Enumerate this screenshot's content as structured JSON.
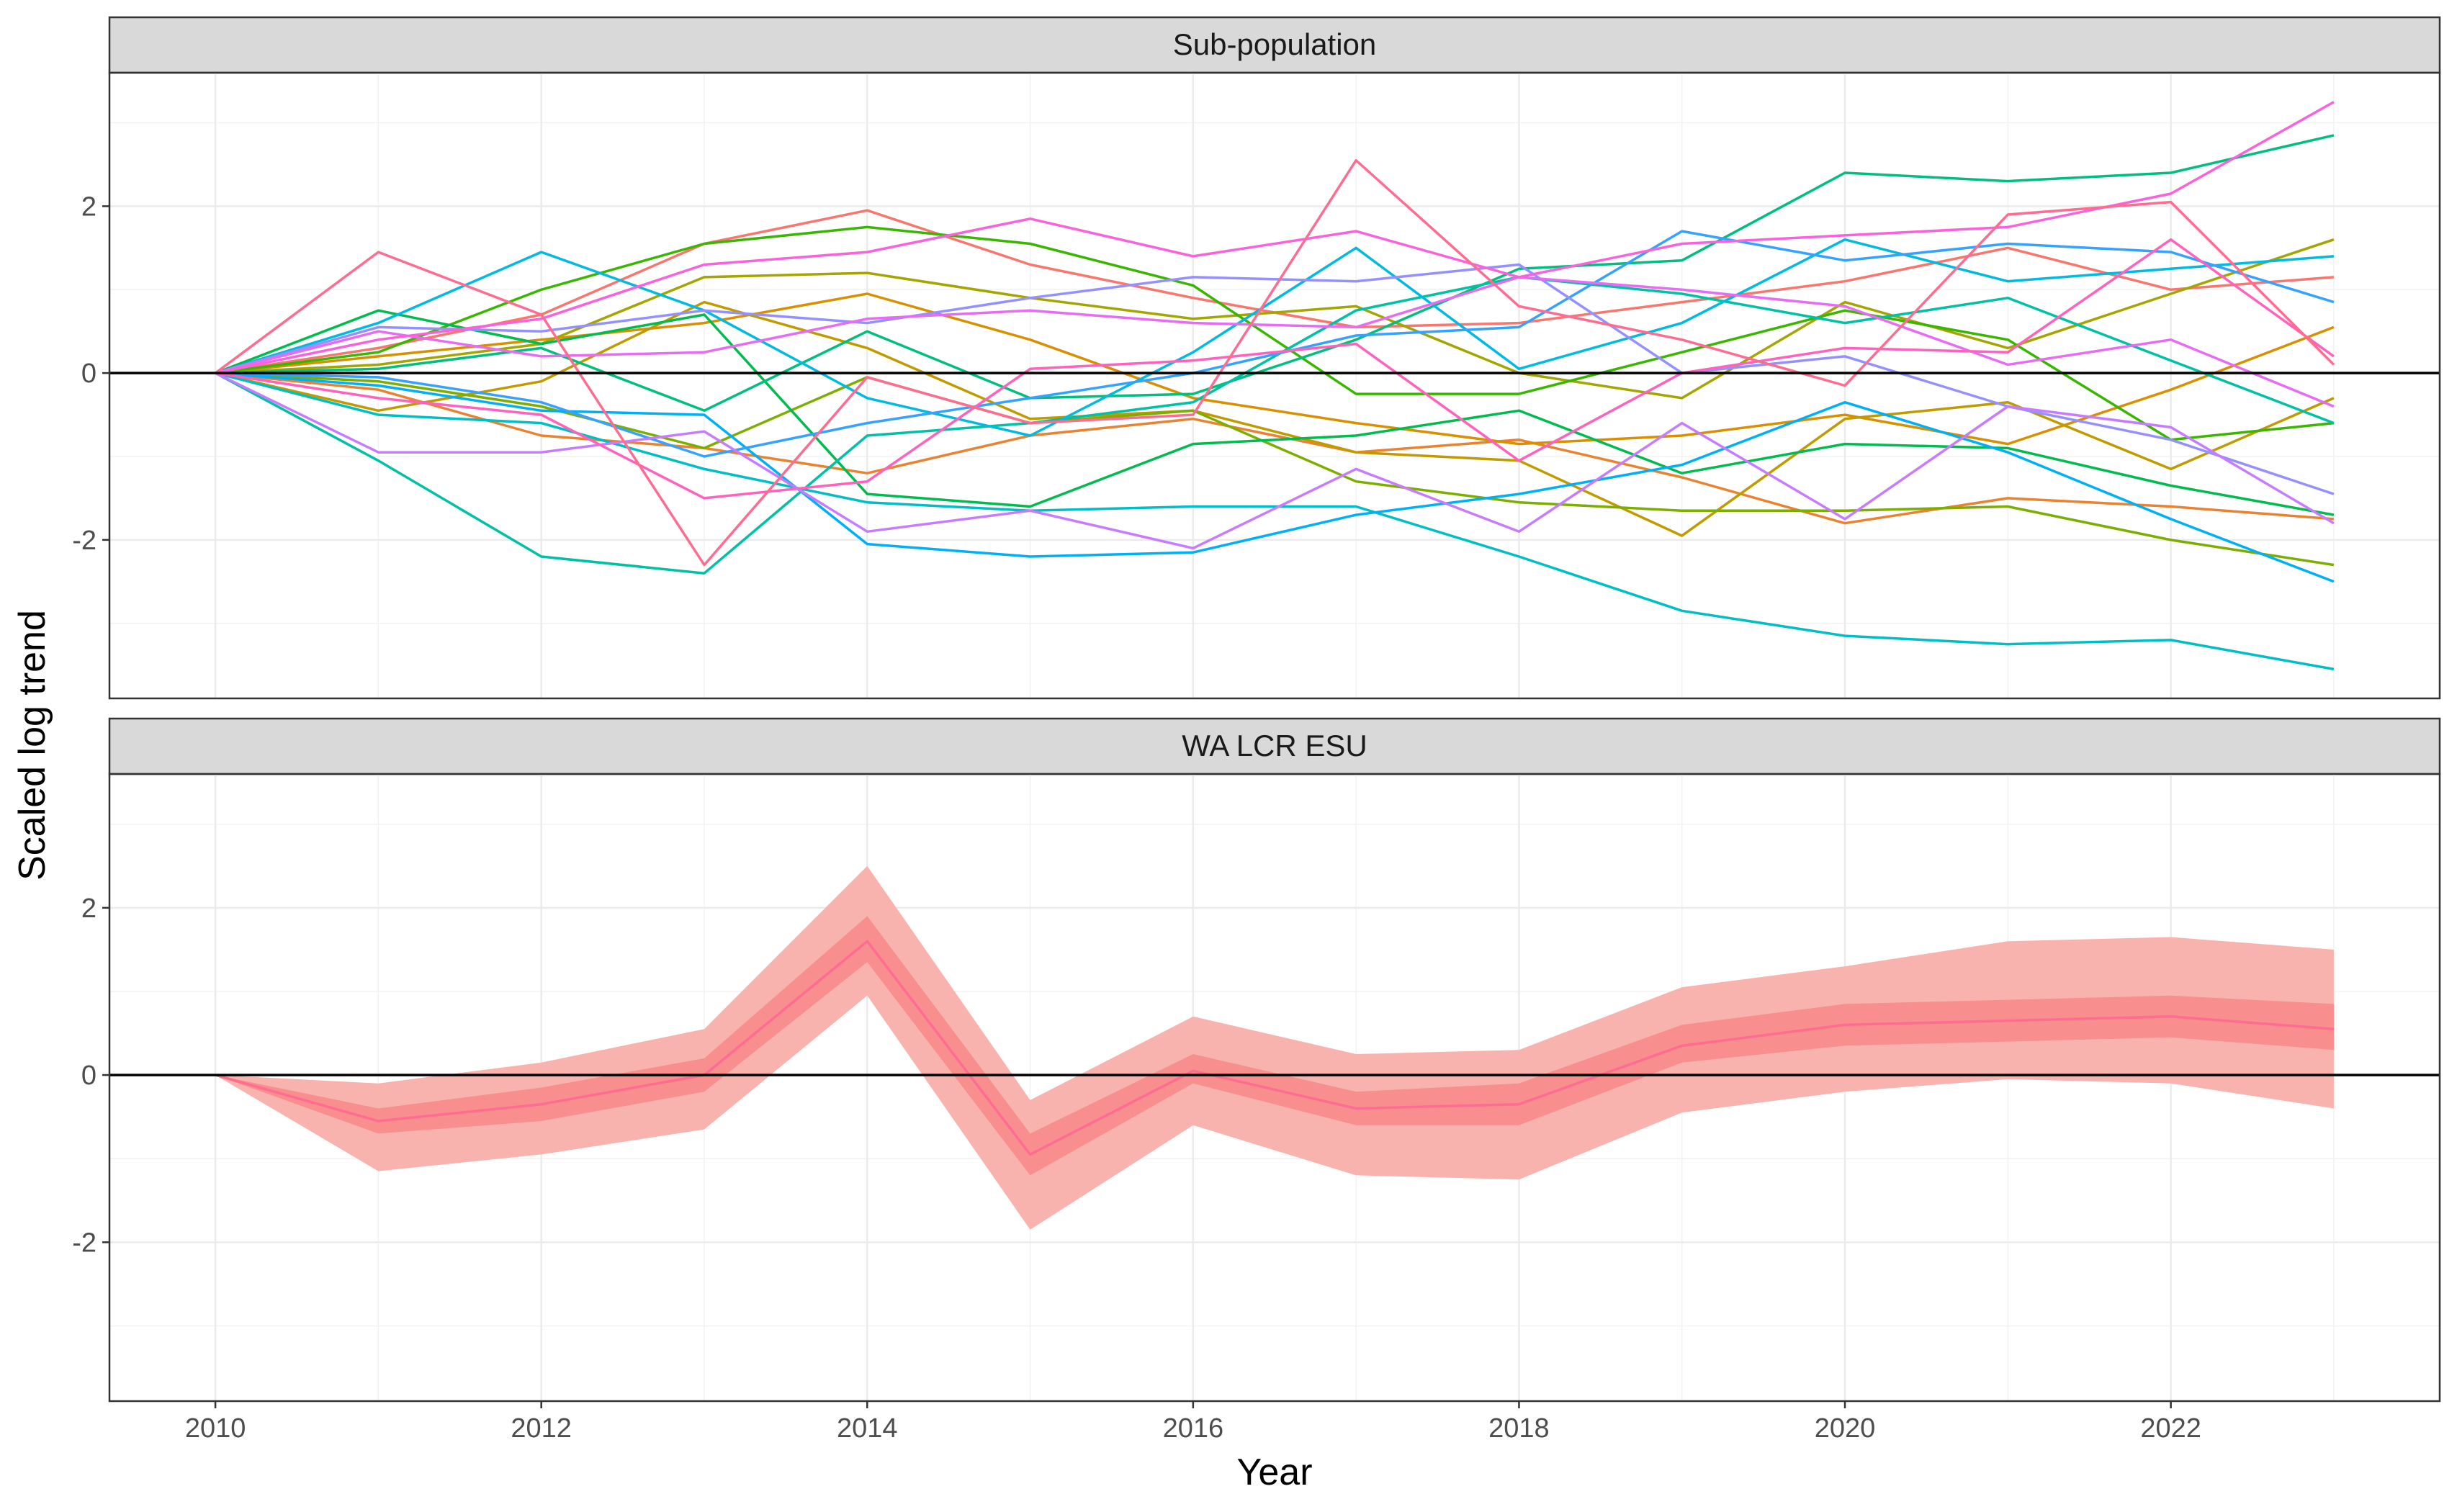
{
  "chart_data": {
    "type": "line",
    "xlabel": "Year",
    "ylabel": "Scaled log trend",
    "xlim": [
      2009.35,
      2023.65
    ],
    "ylim": [
      -3.9,
      3.6
    ],
    "x_ticks": [
      "2010",
      "2012",
      "2014",
      "2016",
      "2018",
      "2020",
      "2022"
    ],
    "y_ticks": [
      "-2",
      "0",
      "2"
    ],
    "grid": true,
    "legend": "none",
    "reference_line": 0,
    "panels": [
      {
        "title": "Sub-population",
        "years": [
          2010,
          2011,
          2012,
          2013,
          2014,
          2015,
          2016,
          2017,
          2018,
          2019,
          2020,
          2021,
          2022,
          2023
        ],
        "series": [
          {
            "color": "#F8766D",
            "values": [
              0,
              0.3,
              0.7,
              1.55,
              1.95,
              1.3,
              0.9,
              0.55,
              0.6,
              0.85,
              1.1,
              1.5,
              1.0,
              1.15
            ]
          },
          {
            "color": "#EA8331",
            "values": [
              0,
              -0.2,
              -0.75,
              -0.9,
              -1.2,
              -0.75,
              -0.55,
              -0.95,
              -0.8,
              -1.25,
              -1.8,
              -1.5,
              -1.6,
              -1.75
            ]
          },
          {
            "color": "#D89000",
            "values": [
              0,
              0.2,
              0.4,
              0.6,
              0.95,
              0.4,
              -0.3,
              -0.6,
              -0.85,
              -0.75,
              -0.5,
              -0.85,
              -0.2,
              0.55
            ]
          },
          {
            "color": "#C09B00",
            "values": [
              0,
              -0.45,
              -0.1,
              0.85,
              0.3,
              -0.55,
              -0.45,
              -0.95,
              -1.05,
              -1.95,
              -0.55,
              -0.35,
              -1.15,
              -0.3
            ]
          },
          {
            "color": "#A3A500",
            "values": [
              0,
              0.1,
              0.35,
              1.15,
              1.2,
              0.9,
              0.65,
              0.8,
              0.0,
              -0.3,
              0.85,
              0.3,
              0.95,
              1.6
            ]
          },
          {
            "color": "#7CAE00",
            "values": [
              0,
              -0.1,
              -0.4,
              -0.9,
              -0.05,
              -0.6,
              -0.45,
              -1.3,
              -1.55,
              -1.65,
              -1.65,
              -1.6,
              -2.0,
              -2.3
            ]
          },
          {
            "color": "#39B600",
            "values": [
              0,
              0.25,
              1.0,
              1.55,
              1.75,
              1.55,
              1.05,
              -0.25,
              -0.25,
              0.25,
              0.75,
              0.4,
              -0.8,
              -0.6
            ]
          },
          {
            "color": "#00BB4E",
            "values": [
              0,
              0.75,
              0.35,
              0.7,
              -1.45,
              -1.6,
              -0.85,
              -0.75,
              -0.45,
              -1.2,
              -0.85,
              -0.9,
              -1.35,
              -1.7
            ]
          },
          {
            "color": "#00BF7D",
            "values": [
              0,
              0.05,
              0.3,
              -0.45,
              0.5,
              -0.3,
              -0.25,
              0.4,
              1.25,
              1.35,
              2.4,
              2.3,
              2.4,
              2.85
            ]
          },
          {
            "color": "#00C1A3",
            "values": [
              0,
              -1.05,
              -2.2,
              -2.4,
              -0.75,
              -0.6,
              -0.35,
              0.75,
              1.15,
              0.95,
              0.6,
              0.9,
              0.15,
              -0.6
            ]
          },
          {
            "color": "#00BFC4",
            "values": [
              0,
              -0.5,
              -0.6,
              -1.15,
              -1.55,
              -1.65,
              -1.6,
              -1.6,
              -2.2,
              -2.85,
              -3.15,
              -3.25,
              -3.2,
              -3.55
            ]
          },
          {
            "color": "#00BAE0",
            "values": [
              0,
              0.6,
              1.45,
              0.75,
              -0.3,
              -0.75,
              0.25,
              1.5,
              0.05,
              0.6,
              1.6,
              1.1,
              1.25,
              1.4
            ]
          },
          {
            "color": "#00B0F6",
            "values": [
              0,
              -0.15,
              -0.45,
              -0.5,
              -2.05,
              -2.2,
              -2.15,
              -1.7,
              -1.45,
              -1.1,
              -0.35,
              -0.95,
              -1.75,
              -2.5
            ]
          },
          {
            "color": "#35A2FF",
            "values": [
              0,
              -0.05,
              -0.35,
              -1.0,
              -0.6,
              -0.3,
              0.0,
              0.45,
              0.55,
              1.7,
              1.35,
              1.55,
              1.45,
              0.85
            ]
          },
          {
            "color": "#9590FF",
            "values": [
              0,
              0.55,
              0.5,
              0.75,
              0.6,
              0.9,
              1.15,
              1.1,
              1.3,
              0.0,
              0.2,
              -0.4,
              -0.8,
              -1.45
            ]
          },
          {
            "color": "#C77CFF",
            "values": [
              0,
              -0.95,
              -0.95,
              -0.7,
              -1.9,
              -1.65,
              -2.1,
              -1.15,
              -1.9,
              -0.6,
              -1.75,
              -0.4,
              -0.65,
              -1.8
            ]
          },
          {
            "color": "#E76BF3",
            "values": [
              0,
              0.5,
              0.2,
              0.25,
              0.65,
              0.75,
              0.6,
              0.55,
              1.15,
              1.0,
              0.8,
              0.1,
              0.4,
              -0.4
            ]
          },
          {
            "color": "#FA62DB",
            "values": [
              0,
              0.4,
              0.65,
              1.3,
              1.45,
              1.85,
              1.4,
              1.7,
              1.15,
              1.55,
              1.65,
              1.75,
              2.15,
              3.25
            ]
          },
          {
            "color": "#FF62BC",
            "values": [
              0,
              -0.3,
              -0.5,
              -1.5,
              -1.3,
              0.05,
              0.15,
              0.35,
              -1.05,
              0.0,
              0.3,
              0.25,
              1.6,
              0.2
            ]
          },
          {
            "color": "#FF6C91",
            "values": [
              0,
              1.45,
              0.7,
              -2.3,
              -0.05,
              -0.6,
              -0.5,
              2.55,
              0.8,
              0.4,
              -0.15,
              1.9,
              2.05,
              0.1
            ]
          }
        ]
      },
      {
        "title": "WA LCR ESU",
        "years": [
          2010,
          2011,
          2012,
          2013,
          2014,
          2015,
          2016,
          2017,
          2018,
          2019,
          2020,
          2021,
          2022,
          2023
        ],
        "mean": [
          0,
          -0.55,
          -0.35,
          0.0,
          1.6,
          -0.95,
          0.05,
          -0.4,
          -0.35,
          0.35,
          0.6,
          0.65,
          0.7,
          0.55
        ],
        "inner_lower": [
          0,
          -0.7,
          -0.55,
          -0.2,
          1.35,
          -1.2,
          -0.1,
          -0.6,
          -0.6,
          0.15,
          0.35,
          0.4,
          0.45,
          0.3
        ],
        "inner_upper": [
          0,
          -0.4,
          -0.15,
          0.2,
          1.9,
          -0.7,
          0.25,
          -0.2,
          -0.1,
          0.6,
          0.85,
          0.9,
          0.95,
          0.85
        ],
        "outer_lower": [
          0,
          -1.15,
          -0.95,
          -0.65,
          0.95,
          -1.85,
          -0.6,
          -1.2,
          -1.25,
          -0.45,
          -0.2,
          -0.05,
          -0.1,
          -0.4
        ],
        "outer_upper": [
          0,
          -0.1,
          0.15,
          0.55,
          2.5,
          -0.3,
          0.7,
          0.25,
          0.3,
          1.05,
          1.3,
          1.6,
          1.65,
          1.5
        ],
        "colors": {
          "line": "#FF6C91",
          "inner_band": "#F88E8E",
          "outer_band": "#F9B3AE"
        }
      }
    ]
  }
}
